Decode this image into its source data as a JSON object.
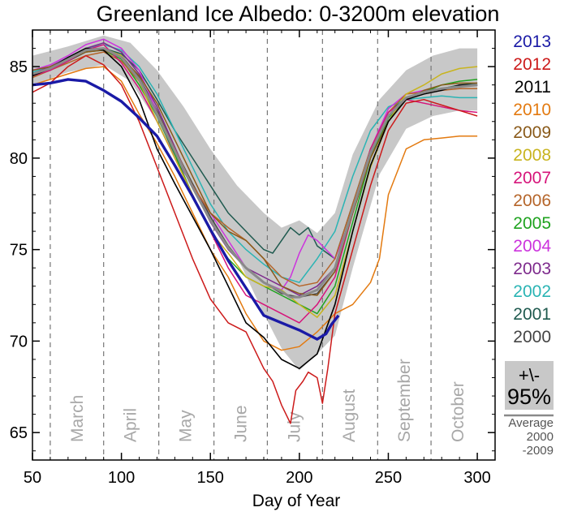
{
  "chart_data": {
    "type": "line",
    "title": "Greenland Ice Albedo: 0-3200m elevation",
    "xlabel": "Day of Year",
    "ylabel": "",
    "xlim": [
      50,
      310
    ],
    "ylim": [
      63.5,
      87.0
    ],
    "xticks": [
      50,
      100,
      150,
      200,
      250,
      300
    ],
    "yticks": [
      65,
      70,
      75,
      80,
      85
    ],
    "month_dividers": [
      60,
      90,
      121,
      152,
      182,
      213,
      244,
      274
    ],
    "months": [
      {
        "label": "March",
        "x": 75
      },
      {
        "label": "April",
        "x": 105
      },
      {
        "label": "May",
        "x": 136
      },
      {
        "label": "June",
        "x": 167
      },
      {
        "label": "July",
        "x": 197
      },
      {
        "label": "August",
        "x": 228
      },
      {
        "label": "September",
        "x": 259
      },
      {
        "label": "October",
        "x": 289
      }
    ],
    "band": {
      "name": "+\\- 95%",
      "color": "#c8c8c8",
      "x": [
        50,
        70,
        90,
        105,
        120,
        135,
        150,
        165,
        180,
        190,
        200,
        210,
        220,
        230,
        245,
        260,
        275,
        290,
        300
      ],
      "upper": [
        85.6,
        86.1,
        86.7,
        86.3,
        84.8,
        82.8,
        80.5,
        78.5,
        77.0,
        76.2,
        76.6,
        75.9,
        77.0,
        80.2,
        83.2,
        84.8,
        85.6,
        86.0,
        86.0
      ],
      "lower": [
        84.0,
        84.7,
        85.1,
        84.2,
        82.0,
        79.2,
        76.6,
        74.6,
        71.5,
        69.6,
        68.4,
        69.3,
        70.3,
        74.0,
        79.1,
        81.6,
        82.3,
        82.6,
        82.6
      ]
    },
    "series": [
      {
        "name": "2013",
        "color": "#1a1aa6",
        "width": 3.4,
        "x": [
          50,
          60,
          70,
          80,
          90,
          100,
          110,
          120,
          130,
          140,
          150,
          160,
          170,
          180,
          190,
          200,
          210,
          215,
          218,
          222
        ],
        "y": [
          84.0,
          84.1,
          84.3,
          84.2,
          83.7,
          83.1,
          82.2,
          81.2,
          79.6,
          77.9,
          76.1,
          74.4,
          72.9,
          71.4,
          71.0,
          70.6,
          70.1,
          70.4,
          70.9,
          71.4
        ]
      },
      {
        "name": "2012",
        "color": "#cc1a1a",
        "width": 1.5,
        "x": [
          50,
          60,
          70,
          80,
          90,
          100,
          110,
          120,
          130,
          140,
          150,
          160,
          170,
          180,
          185,
          190,
          195,
          198,
          202,
          205,
          210,
          213,
          216,
          220,
          230,
          240,
          250,
          260,
          270,
          280,
          290,
          300
        ],
        "y": [
          83.6,
          84.1,
          85.0,
          85.6,
          85.1,
          84.0,
          82.0,
          79.5,
          77.0,
          74.5,
          72.3,
          71.0,
          70.5,
          68.5,
          67.8,
          66.5,
          65.5,
          67.3,
          67.8,
          68.3,
          68.0,
          66.6,
          68.5,
          71.5,
          75.0,
          78.5,
          81.5,
          83.0,
          83.2,
          82.9,
          82.6,
          82.3
        ]
      },
      {
        "name": "2011",
        "color": "#000000",
        "width": 1.6,
        "x": [
          50,
          60,
          70,
          80,
          90,
          100,
          110,
          120,
          130,
          140,
          150,
          160,
          170,
          180,
          190,
          200,
          210,
          220,
          230,
          240,
          250,
          260,
          270,
          280,
          290,
          300
        ],
        "y": [
          84.5,
          84.9,
          85.5,
          86.0,
          85.9,
          85.0,
          83.2,
          80.5,
          78.6,
          76.8,
          75.0,
          73.0,
          71.0,
          70.2,
          69.0,
          68.5,
          69.3,
          72.0,
          76.0,
          79.6,
          82.0,
          83.2,
          83.5,
          83.7,
          84.0,
          84.0
        ]
      },
      {
        "name": "2010",
        "color": "#e37a10",
        "width": 1.5,
        "x": [
          50,
          60,
          70,
          80,
          90,
          100,
          110,
          120,
          130,
          140,
          150,
          160,
          170,
          180,
          190,
          200,
          210,
          220,
          230,
          240,
          245,
          250,
          260,
          270,
          280,
          290,
          300
        ],
        "y": [
          84.0,
          84.3,
          84.6,
          84.9,
          85.0,
          84.2,
          82.4,
          80.8,
          79.0,
          77.0,
          75.0,
          73.5,
          71.5,
          70.0,
          69.5,
          69.7,
          70.5,
          71.5,
          72.0,
          73.2,
          74.5,
          78.0,
          80.5,
          81.0,
          81.1,
          81.2,
          81.2
        ]
      },
      {
        "name": "2009",
        "color": "#8a5a1a",
        "width": 1.5,
        "x": [
          50,
          60,
          70,
          80,
          90,
          100,
          110,
          120,
          130,
          140,
          150,
          160,
          170,
          180,
          190,
          200,
          210,
          220,
          230,
          240,
          250,
          260,
          270,
          280,
          290,
          300
        ],
        "y": [
          84.8,
          85.0,
          85.4,
          85.8,
          85.9,
          85.5,
          84.5,
          83.0,
          81.0,
          79.0,
          77.0,
          76.0,
          75.5,
          74.5,
          73.0,
          72.6,
          72.5,
          73.8,
          77.0,
          80.0,
          82.0,
          83.2,
          83.7,
          84.0,
          84.1,
          84.1
        ]
      },
      {
        "name": "2008",
        "color": "#c8b41e",
        "width": 1.5,
        "x": [
          50,
          60,
          70,
          80,
          90,
          100,
          110,
          120,
          130,
          140,
          150,
          160,
          170,
          180,
          190,
          200,
          210,
          220,
          230,
          240,
          250,
          260,
          270,
          280,
          290,
          300
        ],
        "y": [
          84.6,
          84.9,
          85.4,
          85.9,
          86.0,
          85.6,
          84.2,
          82.0,
          80.0,
          78.0,
          76.0,
          74.8,
          73.5,
          73.0,
          72.8,
          72.0,
          71.3,
          72.5,
          76.0,
          79.5,
          82.0,
          83.5,
          84.0,
          84.6,
          84.9,
          85.0
        ]
      },
      {
        "name": "2007",
        "color": "#d6147a",
        "width": 1.5,
        "x": [
          50,
          60,
          70,
          80,
          90,
          100,
          110,
          120,
          130,
          140,
          150,
          160,
          170,
          180,
          190,
          200,
          210,
          220,
          230,
          240,
          250,
          260,
          270,
          280,
          290,
          300
        ],
        "y": [
          84.5,
          84.8,
          85.3,
          85.9,
          86.2,
          85.2,
          83.8,
          82.0,
          80.0,
          78.0,
          76.0,
          74.0,
          72.5,
          72.0,
          71.5,
          71.0,
          72.0,
          73.5,
          77.0,
          80.5,
          82.5,
          83.2,
          83.0,
          82.8,
          82.6,
          82.5
        ]
      },
      {
        "name": "2006",
        "color": "#b5652a",
        "width": 1.5,
        "x": [
          50,
          60,
          70,
          80,
          90,
          100,
          110,
          120,
          130,
          140,
          150,
          160,
          170,
          180,
          190,
          200,
          210,
          220,
          230,
          240,
          250,
          260,
          270,
          280,
          290,
          300
        ],
        "y": [
          84.4,
          84.8,
          85.2,
          85.6,
          85.8,
          85.3,
          84.2,
          82.5,
          80.5,
          78.5,
          77.0,
          76.2,
          75.5,
          74.5,
          73.5,
          73.0,
          73.2,
          74.5,
          77.5,
          80.5,
          82.5,
          83.5,
          83.6,
          83.7,
          83.8,
          83.8
        ]
      },
      {
        "name": "2005",
        "color": "#1fa31f",
        "width": 1.5,
        "x": [
          50,
          60,
          70,
          80,
          90,
          100,
          110,
          120,
          130,
          140,
          150,
          160,
          170,
          180,
          190,
          200,
          210,
          220,
          230,
          240,
          250,
          260,
          270,
          280,
          290,
          300
        ],
        "y": [
          84.5,
          84.9,
          85.4,
          85.8,
          85.9,
          85.4,
          84.0,
          82.3,
          80.2,
          78.0,
          76.0,
          74.5,
          73.5,
          73.0,
          72.5,
          72.0,
          71.5,
          73.0,
          76.5,
          80.0,
          82.2,
          83.2,
          83.6,
          84.0,
          84.2,
          84.3
        ]
      },
      {
        "name": "2004",
        "color": "#cc33dd",
        "width": 1.5,
        "x": [
          50,
          60,
          70,
          80,
          90,
          100,
          110,
          120,
          130,
          140,
          150,
          160,
          170,
          180,
          190,
          195,
          200,
          205,
          210,
          215,
          220,
          230,
          240,
          250,
          260,
          270,
          280,
          290,
          300
        ],
        "y": [
          84.8,
          85.1,
          85.6,
          86.2,
          86.5,
          86.0,
          84.8,
          82.5,
          80.0,
          78.5,
          77.0,
          75.5,
          74.0,
          73.2,
          72.8,
          73.5,
          74.8,
          75.8,
          75.5,
          75.0,
          74.5,
          77.0,
          80.5,
          82.7,
          83.5,
          83.7,
          83.8,
          83.9,
          84.0
        ]
      },
      {
        "name": "2003",
        "color": "#7d2a8c",
        "width": 1.5,
        "x": [
          50,
          60,
          70,
          80,
          90,
          100,
          110,
          120,
          130,
          140,
          150,
          160,
          170,
          180,
          190,
          200,
          210,
          220,
          230,
          240,
          250,
          260,
          270,
          280,
          290,
          300
        ],
        "y": [
          84.6,
          85.0,
          85.5,
          86.0,
          86.3,
          85.8,
          84.6,
          82.8,
          80.6,
          78.4,
          76.5,
          75.0,
          74.0,
          73.5,
          73.0,
          72.5,
          73.0,
          74.0,
          77.0,
          80.2,
          82.3,
          83.3,
          83.6,
          83.8,
          83.9,
          84.0
        ]
      },
      {
        "name": "2002",
        "color": "#2ab4b4",
        "width": 1.5,
        "x": [
          50,
          60,
          70,
          80,
          90,
          100,
          110,
          120,
          130,
          140,
          150,
          160,
          170,
          180,
          190,
          200,
          210,
          220,
          230,
          240,
          250,
          260,
          270,
          280,
          290,
          300
        ],
        "y": [
          84.7,
          85.0,
          85.5,
          86.0,
          86.2,
          85.9,
          85.0,
          83.5,
          81.5,
          79.5,
          77.5,
          76.0,
          75.0,
          74.2,
          73.5,
          73.2,
          74.5,
          76.0,
          79.0,
          81.5,
          82.8,
          83.2,
          83.3,
          83.4,
          83.3,
          83.3
        ]
      },
      {
        "name": "2001",
        "color": "#1f5a4f",
        "width": 1.5,
        "x": [
          50,
          60,
          70,
          80,
          90,
          100,
          110,
          120,
          130,
          140,
          150,
          160,
          170,
          180,
          185,
          190,
          195,
          200,
          205,
          210,
          220,
          230,
          240,
          250,
          260,
          270,
          280,
          290,
          300
        ],
        "y": [
          84.6,
          84.9,
          85.4,
          85.9,
          86.0,
          85.7,
          84.8,
          83.2,
          81.5,
          80.0,
          78.5,
          77.0,
          76.0,
          75.0,
          74.8,
          75.5,
          76.2,
          75.8,
          76.2,
          75.2,
          74.5,
          77.5,
          80.5,
          82.5,
          83.3,
          83.6,
          83.8,
          84.0,
          84.1
        ]
      },
      {
        "name": "2000",
        "color": "#444444",
        "width": 1.5,
        "x": [
          50,
          60,
          70,
          80,
          90,
          100,
          110,
          120,
          130,
          140,
          150,
          160,
          170,
          180,
          190,
          200,
          210,
          220,
          230,
          240,
          250,
          260,
          270,
          280,
          290,
          300
        ],
        "y": [
          84.5,
          84.8,
          85.3,
          85.8,
          86.0,
          85.6,
          84.4,
          82.6,
          80.5,
          78.6,
          76.8,
          75.2,
          74.0,
          73.2,
          72.6,
          72.4,
          72.6,
          73.8,
          77.0,
          80.0,
          82.2,
          83.3,
          83.6,
          83.8,
          83.9,
          84.0
        ]
      },
      {
        "name": "Average 2000-2009",
        "color": "#8a8a8a",
        "width": 3.0,
        "in_legend": false,
        "x": [
          50,
          60,
          70,
          80,
          90,
          100,
          110,
          120,
          130,
          140,
          150,
          160,
          170,
          180,
          190,
          195,
          200,
          205,
          210,
          220,
          230,
          240,
          250,
          260,
          270,
          280,
          290,
          300
        ],
        "y": [
          84.6,
          84.9,
          85.4,
          85.9,
          86.0,
          85.5,
          84.3,
          82.4,
          80.4,
          78.4,
          76.6,
          75.1,
          74.0,
          73.2,
          72.7,
          72.4,
          72.4,
          72.6,
          72.8,
          74.0,
          77.2,
          80.3,
          82.3,
          83.3,
          83.6,
          83.8,
          83.9,
          84.0
        ]
      }
    ],
    "legend": {
      "position": "right",
      "ci_label_top": "+\\-",
      "ci_label_bottom": "95%",
      "average_label": "Average",
      "average_years_1": "2000",
      "average_years_2": "-2009"
    }
  }
}
